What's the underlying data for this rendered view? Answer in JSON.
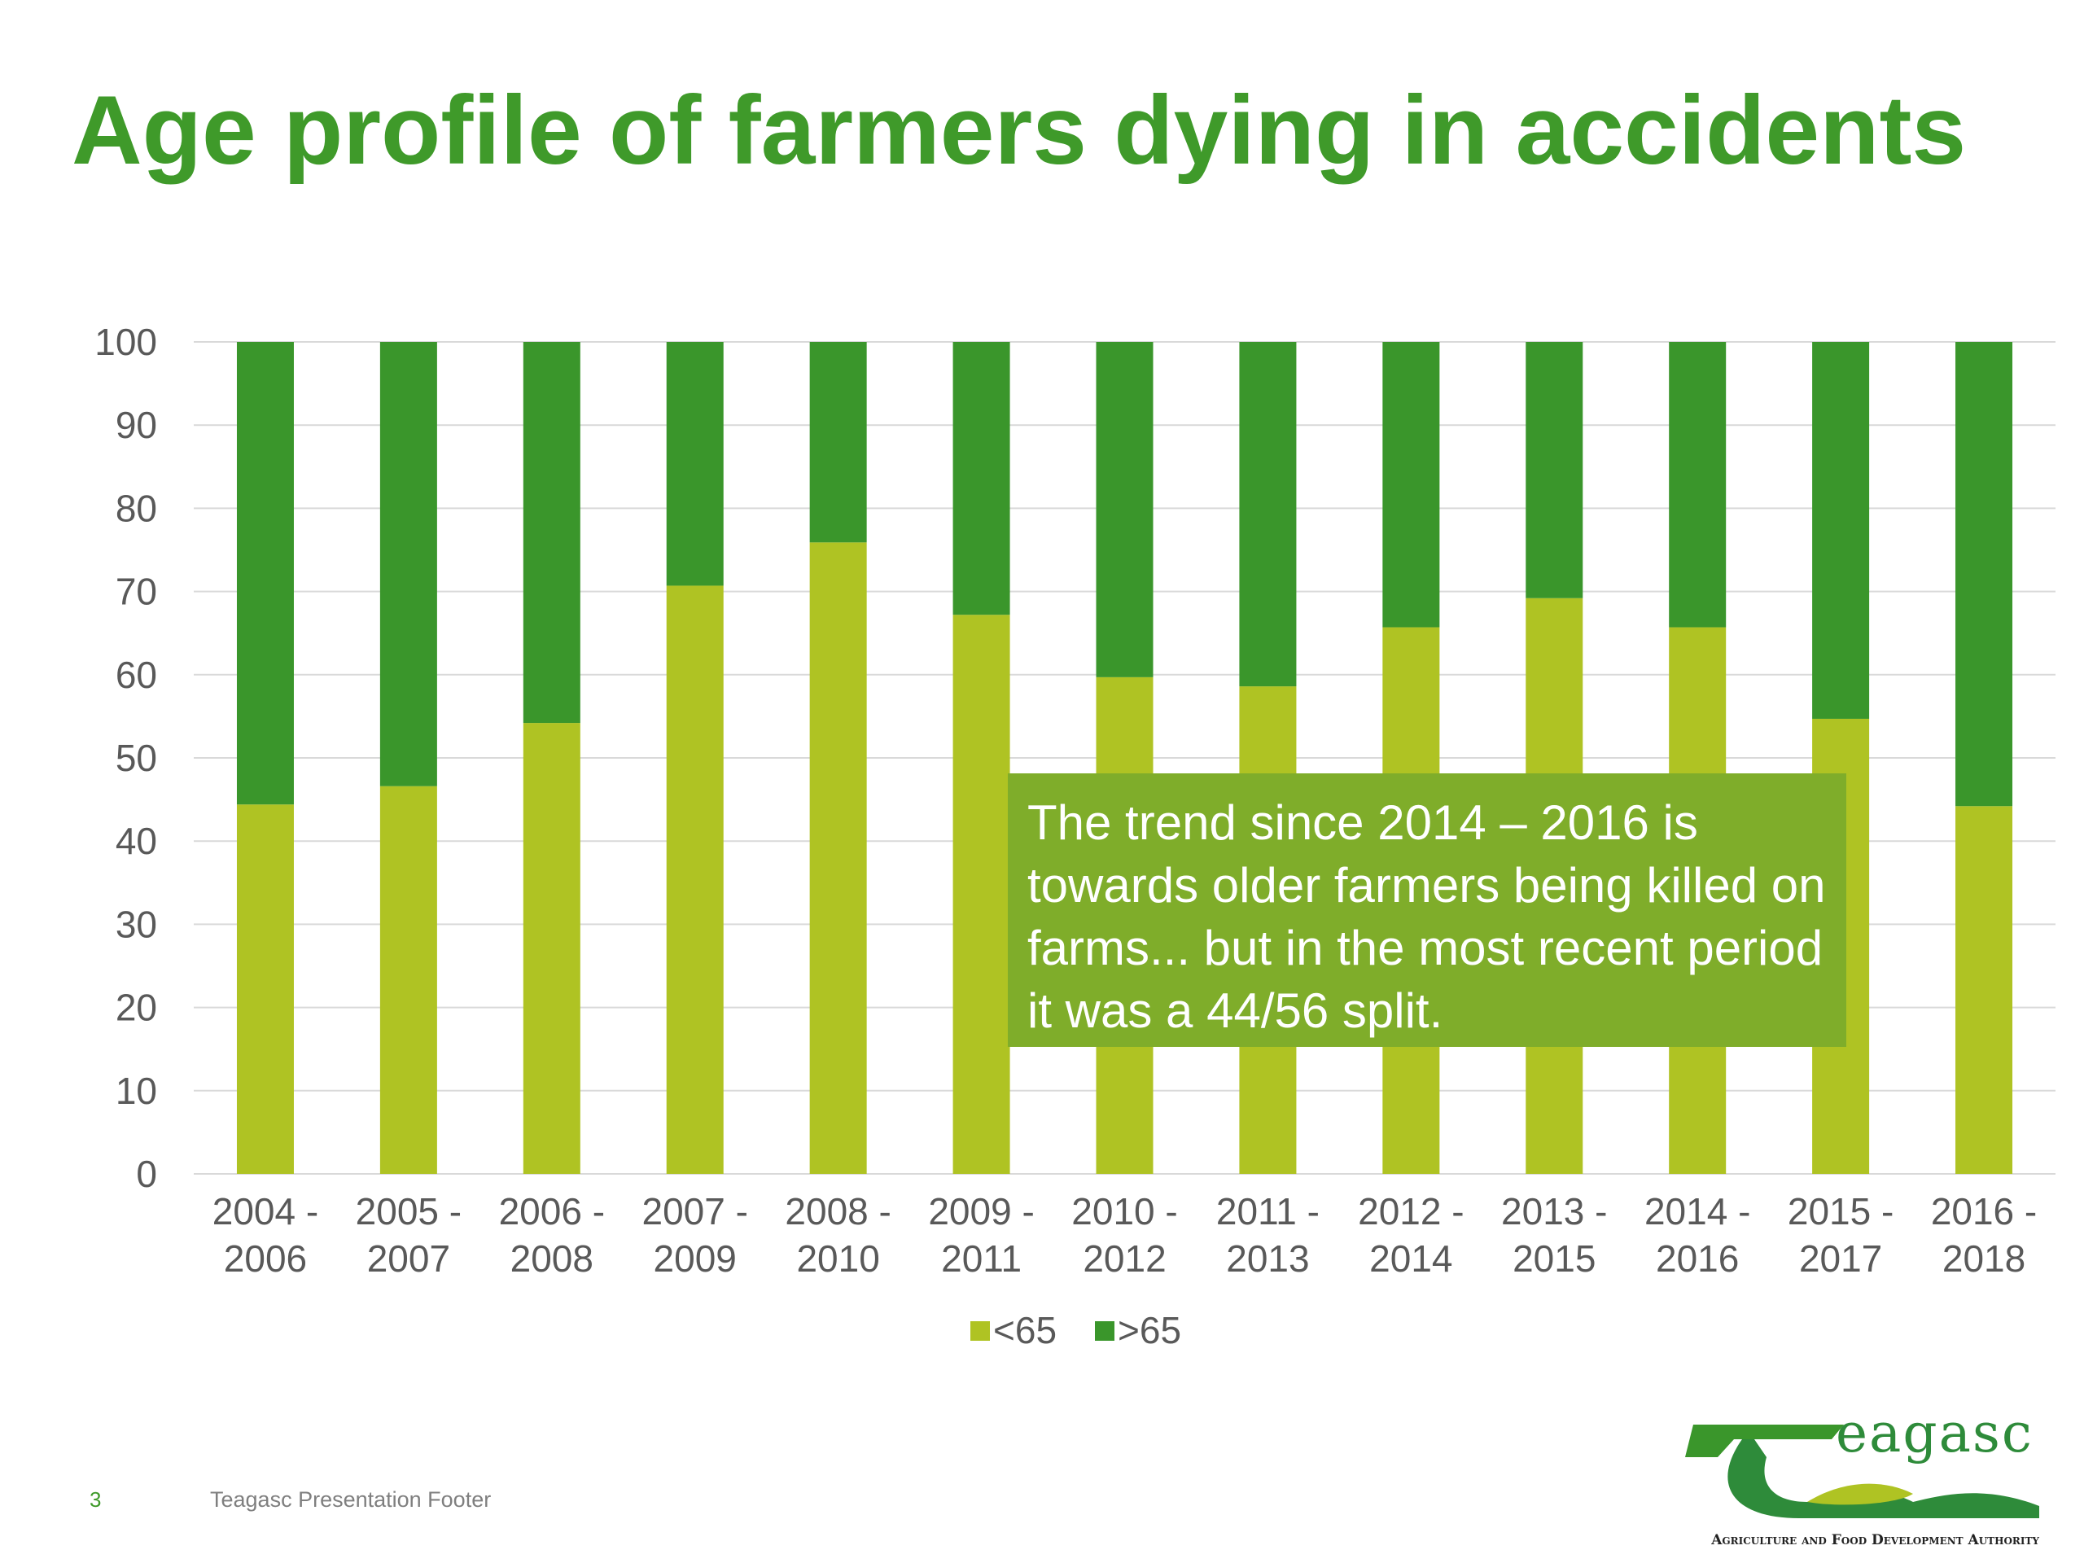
{
  "slide": {
    "title": "Age profile of farmers dying in accidents",
    "page_number": "3",
    "footer": "Teagasc Presentation Footer",
    "callout": "The trend since 2014 – 2016 is towards older farmers being killed on farms... but in the most recent period it was a 44/56 split.",
    "logo": {
      "word": "eagasc",
      "tagline": "Agriculture and Food Development Authority"
    }
  },
  "colors": {
    "title": "#3f9a2a",
    "under65": "#afc323",
    "over65": "#3a962b",
    "callout_bg": "#7fad2a",
    "grid": "#d9d9d9",
    "text": "#595959"
  },
  "chart_data": {
    "type": "bar",
    "stacked": true,
    "categories": [
      [
        "2004 -",
        "2006"
      ],
      [
        "2005 -",
        "2007"
      ],
      [
        "2006 -",
        "2008"
      ],
      [
        "2007 -",
        "2009"
      ],
      [
        "2008 -",
        "2010"
      ],
      [
        "2009 -",
        "2011"
      ],
      [
        "2010 -",
        "2012"
      ],
      [
        "2011 -",
        "2013"
      ],
      [
        "2012 -",
        "2014"
      ],
      [
        "2013 -",
        "2015"
      ],
      [
        "2014 -",
        "2016"
      ],
      [
        "2015 -",
        "2017"
      ],
      [
        "2016 -",
        "2018"
      ]
    ],
    "series": [
      {
        "name": "<65",
        "values": [
          44.4,
          46.6,
          54.2,
          70.7,
          75.9,
          67.2,
          59.7,
          58.6,
          65.7,
          69.2,
          65.7,
          54.7,
          44.2
        ]
      },
      {
        "name": ">65",
        "values": [
          55.6,
          53.4,
          45.8,
          29.3,
          24.1,
          32.8,
          40.3,
          41.4,
          34.3,
          30.8,
          34.3,
          45.3,
          55.8
        ]
      }
    ],
    "ylim": [
      0,
      100
    ],
    "yticks": [
      0,
      10,
      20,
      30,
      40,
      50,
      60,
      70,
      80,
      90,
      100
    ],
    "grid": true,
    "legend": "bottom",
    "xlabel": "",
    "ylabel": ""
  }
}
